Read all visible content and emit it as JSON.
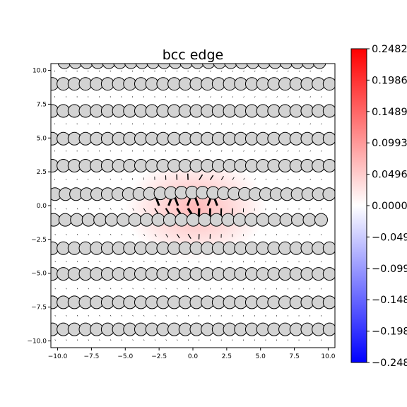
{
  "chart_data": {
    "type": "scatter",
    "title": "bcc edge",
    "xlabel": "",
    "ylabel": "",
    "xlim": [
      -10.5,
      10.5
    ],
    "ylim": [
      -10.5,
      10.5
    ],
    "xticks": [
      "−10.0",
      "−7.5",
      "−5.0",
      "−2.5",
      "0.0",
      "2.5",
      "5.0",
      "7.5",
      "10.0"
    ],
    "xtick_values": [
      -10,
      -7.5,
      -5,
      -2.5,
      0,
      2.5,
      5,
      7.5,
      10
    ],
    "yticks": [
      "10.0",
      "7.5",
      "5.0",
      "2.5",
      "0.0",
      "−2.5",
      "−5.0",
      "−7.5",
      "−10.0"
    ],
    "ytick_values": [
      10,
      7.5,
      5,
      2.5,
      0,
      -2.5,
      -5,
      -7.5,
      -10
    ],
    "atom_rows": [
      {
        "y": 10.6,
        "x_start": -9.5,
        "x_end": 9.5,
        "spacing": 0.82,
        "offset": 0
      },
      {
        "y": 9.0,
        "x_start": -10.4,
        "x_end": 10.4,
        "spacing": 0.82,
        "offset": 0
      },
      {
        "y": 7.0,
        "x_start": -10.4,
        "x_end": 10.4,
        "spacing": 0.82,
        "offset": 0
      },
      {
        "y": 4.95,
        "x_start": -10.4,
        "x_end": 10.4,
        "spacing": 0.82,
        "offset": 0
      },
      {
        "y": 2.95,
        "x_start": -10.4,
        "x_end": 10.4,
        "spacing": 0.82,
        "offset": 0
      },
      {
        "y": 0.85,
        "x_start": -10.2,
        "x_end": 10.2,
        "spacing": 0.78,
        "offset": 0
      },
      {
        "y": -1.05,
        "x_start": -10.3,
        "x_end": 10.3,
        "spacing": 0.86,
        "offset": 0
      },
      {
        "y": -3.15,
        "x_start": -10.4,
        "x_end": 10.4,
        "spacing": 0.82,
        "offset": 0
      },
      {
        "y": -5.05,
        "x_start": -10.4,
        "x_end": 10.4,
        "spacing": 0.82,
        "offset": 0
      },
      {
        "y": -7.15,
        "x_start": -10.4,
        "x_end": 10.4,
        "spacing": 0.82,
        "offset": 0
      },
      {
        "y": -9.15,
        "x_start": -10.4,
        "x_end": 10.4,
        "spacing": 0.82,
        "offset": 0
      }
    ],
    "strain_field": {
      "center_x": 0.2,
      "center_y": -0.2,
      "sigma_x": 2.4,
      "sigma_y": 1.6,
      "peak": 0.2
    }
  },
  "colorbar": {
    "ticks": [
      "0.2482",
      "0.1986",
      "0.1489",
      "0.0993",
      "0.0496",
      "0.0000",
      "−0.0496",
      "−0.0993",
      "−0.1489",
      "−0.1986",
      "−0.2482"
    ],
    "tick_values": [
      0.2482,
      0.1986,
      0.1489,
      0.0993,
      0.0496,
      0.0,
      -0.0496,
      -0.0993,
      -0.1489,
      -0.1986,
      -0.2482
    ],
    "min": -0.2482,
    "max": 0.2482,
    "colors": {
      "low": "#0000ff",
      "mid": "#ffffff",
      "high": "#ff0000"
    }
  },
  "colors": {
    "atom_fill": "#d3d3d3",
    "atom_stroke": "#000000",
    "arrow": "#000000"
  }
}
